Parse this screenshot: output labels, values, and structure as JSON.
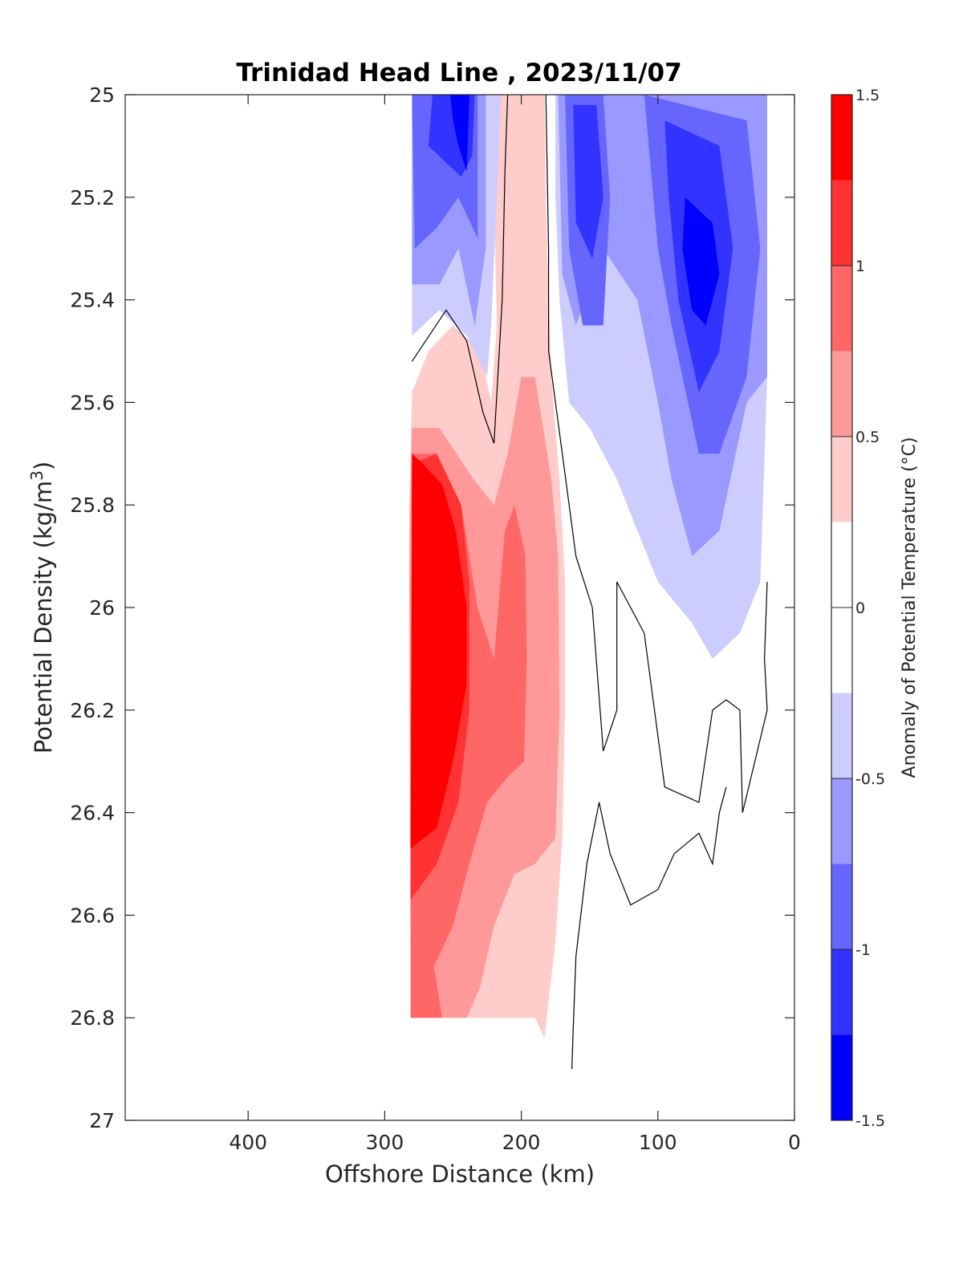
{
  "chart_data": {
    "type": "contour",
    "title": "Trinidad Head Line , 2023/11/07",
    "xlabel": "Offshore Distance (km)",
    "ylabel": "Potential Density (kg/m",
    "ylabel_sup": "3",
    "ylabel_close": ")",
    "xlim": [
      490,
      0
    ],
    "ylim": [
      25,
      27
    ],
    "x_reversed": true,
    "y_reversed": true,
    "xticks": [
      400,
      300,
      200,
      100,
      0
    ],
    "xtick_labels": [
      "400",
      "300",
      "200",
      "100",
      "0"
    ],
    "yticks": [
      25,
      25.2,
      25.4,
      25.6,
      25.8,
      26,
      26.2,
      26.4,
      26.6,
      26.8,
      27
    ],
    "ytick_labels": [
      "25",
      "25.2",
      "25.4",
      "25.6",
      "25.8",
      "26",
      "26.2",
      "26.4",
      "26.6",
      "26.8",
      "27"
    ],
    "colorbar": {
      "label": "Anomaly of Potential Temperature (°C)",
      "range": [
        -1.5,
        1.5
      ],
      "ticks": [
        1.5,
        1,
        0.5,
        0,
        -0.5,
        -1,
        -1.5
      ],
      "tick_labels": [
        "1.5",
        "1",
        "0.5",
        "0",
        "-0.5",
        "-1",
        "-1.5"
      ],
      "levels": [
        {
          "from": 1.25,
          "to": 1.5,
          "color": "#ff0000"
        },
        {
          "from": 1.0,
          "to": 1.25,
          "color": "#ff3333"
        },
        {
          "from": 0.75,
          "to": 1.0,
          "color": "#ff6666"
        },
        {
          "from": 0.5,
          "to": 0.75,
          "color": "#ff9999"
        },
        {
          "from": 0.25,
          "to": 0.5,
          "color": "#ffcccc"
        },
        {
          "from": -0.25,
          "to": 0.25,
          "color": "#ffffff"
        },
        {
          "from": -0.5,
          "to": -0.25,
          "color": "#ccccff"
        },
        {
          "from": -0.75,
          "to": -0.5,
          "color": "#9999ff"
        },
        {
          "from": -1.0,
          "to": -0.75,
          "color": "#6666ff"
        },
        {
          "from": -1.25,
          "to": -1.0,
          "color": "#3333ff"
        },
        {
          "from": -1.5,
          "to": -1.25,
          "color": "#0000ff"
        }
      ]
    },
    "filled_regions": [
      {
        "level": 0.375,
        "points": [
          [
            280,
            25.58
          ],
          [
            282,
            25.8
          ],
          [
            281,
            26.8
          ],
          [
            220,
            26.8
          ],
          [
            190,
            26.8
          ],
          [
            183,
            26.84
          ],
          [
            175,
            26.65
          ],
          [
            170,
            26.45
          ],
          [
            168,
            26.2
          ],
          [
            168,
            25.95
          ],
          [
            172,
            25.75
          ],
          [
            178,
            25.55
          ],
          [
            182,
            25.2
          ],
          [
            183,
            25
          ],
          [
            215,
            25
          ],
          [
            220,
            25.2
          ],
          [
            218,
            25.45
          ],
          [
            222,
            25.6
          ],
          [
            230,
            25.5
          ],
          [
            250,
            25.45
          ],
          [
            268,
            25.5
          ]
        ]
      },
      {
        "level": 0.625,
        "points": [
          [
            280,
            25.65
          ],
          [
            282,
            25.9
          ],
          [
            281,
            26.8
          ],
          [
            240,
            26.8
          ],
          [
            230,
            26.74
          ],
          [
            220,
            26.62
          ],
          [
            205,
            26.52
          ],
          [
            190,
            26.5
          ],
          [
            175,
            26.45
          ],
          [
            172,
            26.2
          ],
          [
            173,
            25.9
          ],
          [
            178,
            25.75
          ],
          [
            190,
            25.55
          ],
          [
            200,
            25.55
          ],
          [
            210,
            25.7
          ],
          [
            220,
            25.8
          ],
          [
            235,
            25.75
          ],
          [
            260,
            25.65
          ]
        ]
      },
      {
        "level": 0.875,
        "points": [
          [
            280,
            25.7
          ],
          [
            281,
            26.8
          ],
          [
            258,
            26.8
          ],
          [
            264,
            26.7
          ],
          [
            250,
            26.62
          ],
          [
            236,
            26.48
          ],
          [
            225,
            26.38
          ],
          [
            210,
            26.33
          ],
          [
            198,
            26.3
          ],
          [
            196,
            26.1
          ],
          [
            197,
            25.9
          ],
          [
            205,
            25.8
          ],
          [
            212,
            25.85
          ],
          [
            220,
            26.1
          ],
          [
            232,
            26
          ],
          [
            244,
            25.8
          ],
          [
            262,
            25.7
          ]
        ]
      },
      {
        "level": 1.125,
        "points": [
          [
            280,
            25.72
          ],
          [
            281,
            26.57
          ],
          [
            262,
            26.5
          ],
          [
            246,
            26.38
          ],
          [
            238,
            26.2
          ],
          [
            238,
            25.95
          ],
          [
            244,
            25.8
          ],
          [
            262,
            25.7
          ]
        ]
      },
      {
        "level": 1.375,
        "points": [
          [
            280,
            25.7
          ],
          [
            281,
            26.47
          ],
          [
            262,
            26.43
          ],
          [
            250,
            26.3
          ],
          [
            240,
            26.15
          ],
          [
            240,
            26
          ],
          [
            248,
            25.85
          ],
          [
            258,
            25.76
          ],
          [
            272,
            25.72
          ]
        ]
      },
      {
        "level": -0.375,
        "points": [
          [
            280,
            25
          ],
          [
            215,
            25
          ],
          [
            218,
            25.2
          ],
          [
            222,
            25.45
          ],
          [
            225,
            25.55
          ],
          [
            240,
            25.47
          ],
          [
            260,
            25.42
          ],
          [
            280,
            25.47
          ]
        ]
      },
      {
        "level": -0.625,
        "points": [
          [
            280,
            25
          ],
          [
            226,
            25
          ],
          [
            226,
            25.3
          ],
          [
            234,
            25.45
          ],
          [
            246,
            25.3
          ],
          [
            260,
            25.37
          ],
          [
            280,
            25.37
          ]
        ]
      },
      {
        "level": -0.875,
        "points": [
          [
            280,
            25
          ],
          [
            232,
            25
          ],
          [
            232,
            25.28
          ],
          [
            246,
            25.2
          ],
          [
            262,
            25.26
          ],
          [
            278,
            25.3
          ]
        ]
      },
      {
        "level": -1.125,
        "points": [
          [
            265,
            25
          ],
          [
            234,
            25
          ],
          [
            236,
            25.12
          ],
          [
            244,
            25.16
          ],
          [
            256,
            25.13
          ],
          [
            268,
            25.1
          ]
        ]
      },
      {
        "level": -1.375,
        "points": [
          [
            252,
            25
          ],
          [
            238,
            25
          ],
          [
            240,
            25.15
          ],
          [
            246,
            25.1
          ],
          [
            250,
            25.05
          ]
        ]
      },
      {
        "level": -0.375,
        "points": [
          [
            175,
            25
          ],
          [
            20,
            25
          ],
          [
            20,
            25.55
          ],
          [
            25,
            25.95
          ],
          [
            40,
            26.05
          ],
          [
            60,
            26.1
          ],
          [
            75,
            26.03
          ],
          [
            100,
            25.95
          ],
          [
            130,
            25.75
          ],
          [
            150,
            25.65
          ],
          [
            165,
            25.6
          ],
          [
            172,
            25.4
          ],
          [
            175,
            25.2
          ]
        ]
      },
      {
        "level": -0.625,
        "points": [
          [
            173,
            25
          ],
          [
            20,
            25
          ],
          [
            20,
            25.55
          ],
          [
            35,
            25.6
          ],
          [
            55,
            25.85
          ],
          [
            75,
            25.9
          ],
          [
            90,
            25.75
          ],
          [
            100,
            25.6
          ],
          [
            115,
            25.4
          ],
          [
            140,
            25.3
          ],
          [
            160,
            25.45
          ],
          [
            170,
            25.35
          ]
        ]
      },
      {
        "level": -0.875,
        "points": [
          [
            168,
            25
          ],
          [
            140,
            25
          ],
          [
            135,
            25.2
          ],
          [
            140,
            25.45
          ],
          [
            155,
            25.45
          ],
          [
            165,
            25.3
          ]
        ]
      },
      {
        "level": -0.875,
        "points": [
          [
            110,
            25
          ],
          [
            35,
            25.05
          ],
          [
            25,
            25.3
          ],
          [
            35,
            25.55
          ],
          [
            55,
            25.7
          ],
          [
            70,
            25.7
          ],
          [
            90,
            25.45
          ],
          [
            100,
            25.3
          ]
        ]
      },
      {
        "level": -1.125,
        "points": [
          [
            162,
            25.02
          ],
          [
            145,
            25.02
          ],
          [
            140,
            25.2
          ],
          [
            148,
            25.32
          ],
          [
            160,
            25.25
          ]
        ]
      },
      {
        "level": -1.125,
        "points": [
          [
            95,
            25.05
          ],
          [
            55,
            25.1
          ],
          [
            45,
            25.3
          ],
          [
            55,
            25.5
          ],
          [
            70,
            25.58
          ],
          [
            85,
            25.4
          ],
          [
            92,
            25.2
          ]
        ]
      },
      {
        "level": -1.375,
        "points": [
          [
            80,
            25.2
          ],
          [
            60,
            25.25
          ],
          [
            55,
            25.35
          ],
          [
            65,
            25.45
          ],
          [
            75,
            25.42
          ],
          [
            82,
            25.3
          ]
        ]
      }
    ],
    "contour_lines": [
      {
        "level": 0.25,
        "points": [
          [
            280,
            25.52
          ],
          [
            255,
            25.42
          ],
          [
            240,
            25.48
          ],
          [
            228,
            25.62
          ],
          [
            220,
            25.68
          ],
          [
            214,
            25.4
          ],
          [
            212,
            25.15
          ],
          [
            210,
            25.0
          ]
        ]
      },
      {
        "level": 0,
        "points": [
          [
            182,
            25.0
          ],
          [
            180,
            25.3
          ],
          [
            180,
            25.5
          ],
          [
            170,
            25.7
          ],
          [
            160,
            25.9
          ],
          [
            148,
            26.0
          ],
          [
            140,
            26.28
          ],
          [
            130,
            26.2
          ],
          [
            130,
            25.95
          ],
          [
            120,
            26.0
          ],
          [
            110,
            26.05
          ],
          [
            95,
            26.35
          ],
          [
            70,
            26.38
          ],
          [
            60,
            26.2
          ],
          [
            50,
            26.18
          ],
          [
            40,
            26.2
          ],
          [
            38,
            26.4
          ],
          [
            20,
            26.2
          ],
          [
            22,
            26.1
          ],
          [
            20,
            25.95
          ]
        ]
      },
      {
        "level": 0,
        "points": [
          [
            163,
            26.9
          ],
          [
            162,
            26.82
          ],
          [
            160,
            26.68
          ],
          [
            152,
            26.5
          ],
          [
            143,
            26.38
          ],
          [
            135,
            26.48
          ],
          [
            120,
            26.58
          ],
          [
            100,
            26.55
          ],
          [
            88,
            26.48
          ],
          [
            70,
            26.44
          ],
          [
            60,
            26.5
          ],
          [
            55,
            26.4
          ],
          [
            50,
            26.35
          ]
        ]
      }
    ]
  }
}
